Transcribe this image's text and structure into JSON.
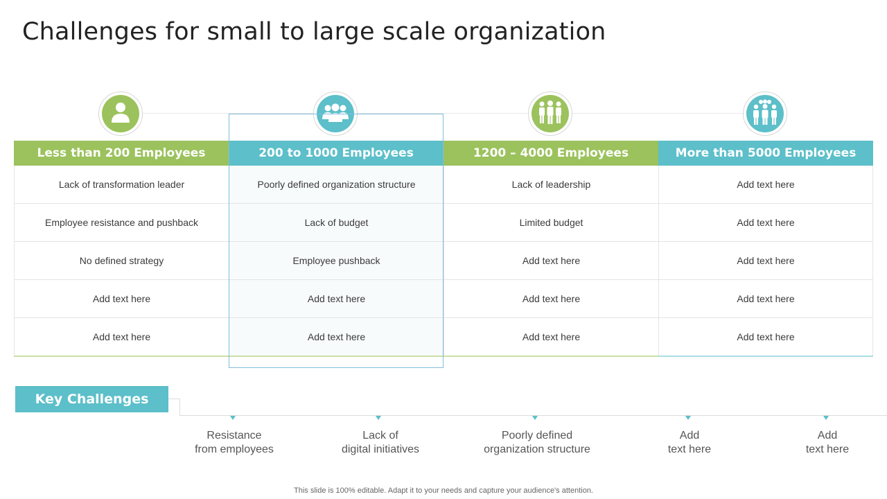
{
  "title": "Challenges for small to large scale organization",
  "colors": {
    "green": "#9bc25c",
    "teal": "#5cbfc9",
    "highlight_border": "#7fbedd"
  },
  "columns": [
    {
      "header": "Less than 200 Employees",
      "icon": "single-person-icon",
      "color": "green",
      "items": [
        "Lack of transformation leader",
        "Employee resistance and pushback",
        "No defined strategy",
        "Add text here",
        "Add text here"
      ]
    },
    {
      "header": "200 to 1000 Employees",
      "icon": "group-icon",
      "color": "teal",
      "items": [
        "Poorly defined organization structure",
        "Lack of budget",
        "Employee pushback",
        "Add text here",
        "Add text here"
      ]
    },
    {
      "header": "1200 – 4000 Employees",
      "icon": "team-icon",
      "color": "green",
      "items": [
        "Lack of leadership",
        "Limited budget",
        "Add text here",
        "Add text here",
        "Add text here"
      ]
    },
    {
      "header": "More than 5000 Employees",
      "icon": "crowd-icon",
      "color": "teal",
      "items": [
        "Add text here",
        "Add text here",
        "Add text here",
        "Add text here",
        "Add text here"
      ]
    }
  ],
  "key_challenges": {
    "label": "Key Challenges",
    "items": [
      "Resistance\nfrom employees",
      "Lack of\ndigital initiatives",
      "Poorly defined\norganization structure",
      "Add\ntext here",
      "Add\ntext here"
    ]
  },
  "footer": "This slide is 100% editable. Adapt it to your needs and capture your audience's attention."
}
